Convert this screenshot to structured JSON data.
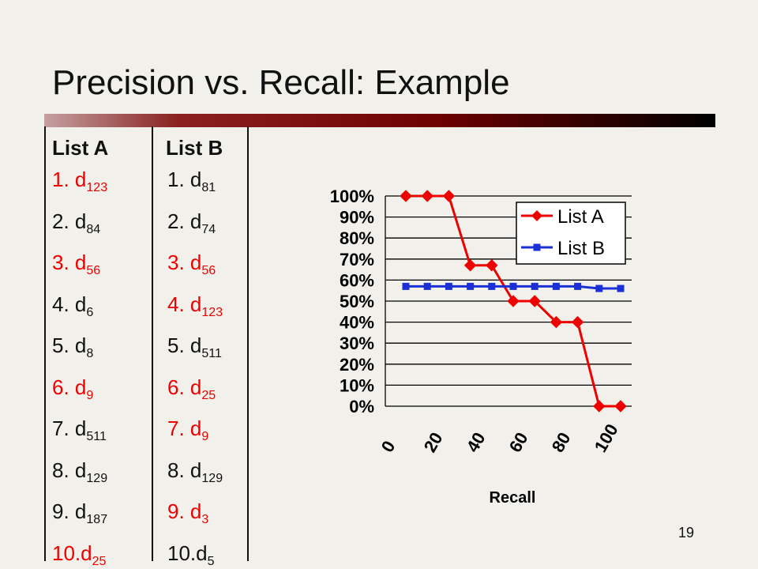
{
  "slide": {
    "title": "Precision vs. Recall: Example",
    "page_number": "19"
  },
  "lists": [
    {
      "header": "List A",
      "items": [
        {
          "num": "1.",
          "doc": "d",
          "sub": "123",
          "relevant": true
        },
        {
          "num": "2.",
          "doc": "d",
          "sub": "84",
          "relevant": false
        },
        {
          "num": "3.",
          "doc": "d",
          "sub": "56",
          "relevant": true
        },
        {
          "num": "4.",
          "doc": "d",
          "sub": "6",
          "relevant": false
        },
        {
          "num": "5.",
          "doc": "d",
          "sub": "8",
          "relevant": false
        },
        {
          "num": "6.",
          "doc": "d",
          "sub": "9",
          "relevant": true
        },
        {
          "num": "7.",
          "doc": "d",
          "sub": "511",
          "relevant": false
        },
        {
          "num": "8.",
          "doc": "d",
          "sub": "129",
          "relevant": false
        },
        {
          "num": "9.",
          "doc": "d",
          "sub": "187",
          "relevant": false
        },
        {
          "num": "10.",
          "doc": "d",
          "sub": "25",
          "relevant": true
        }
      ]
    },
    {
      "header": "List B",
      "items": [
        {
          "num": "1.",
          "doc": "d",
          "sub": "81",
          "relevant": false
        },
        {
          "num": "2.",
          "doc": "d",
          "sub": "74",
          "relevant": false
        },
        {
          "num": "3.",
          "doc": "d",
          "sub": "56",
          "relevant": true
        },
        {
          "num": "4.",
          "doc": "d",
          "sub": "123",
          "relevant": true
        },
        {
          "num": "5.",
          "doc": "d",
          "sub": "511",
          "relevant": false
        },
        {
          "num": "6.",
          "doc": "d",
          "sub": "25",
          "relevant": true
        },
        {
          "num": "7.",
          "doc": "d",
          "sub": "9",
          "relevant": true
        },
        {
          "num": "8.",
          "doc": "d",
          "sub": "129",
          "relevant": false
        },
        {
          "num": "9.",
          "doc": "d",
          "sub": "3",
          "relevant": true
        },
        {
          "num": "10.",
          "doc": "d",
          "sub": "5",
          "relevant": false
        }
      ]
    }
  ],
  "colors": {
    "relevant": "#ee0000",
    "normal": "#111111",
    "series_a": "#ee0000",
    "series_b": "#1a2fd6"
  },
  "chart_data": {
    "type": "line",
    "title": "",
    "xlabel": "Recall",
    "ylabel": "",
    "x_ticks": [
      "0",
      "20",
      "40",
      "60",
      "80",
      "100"
    ],
    "y_ticks": [
      "0%",
      "10%",
      "20%",
      "30%",
      "40%",
      "50%",
      "60%",
      "70%",
      "80%",
      "90%",
      "100%"
    ],
    "ylim": [
      0,
      100
    ],
    "legend_position": "top-right",
    "series": [
      {
        "name": "List A",
        "marker": "diamond",
        "color": "#ee0000",
        "values": [
          100,
          100,
          100,
          67,
          67,
          50,
          50,
          40,
          40,
          0,
          0
        ]
      },
      {
        "name": "List B",
        "marker": "square",
        "color": "#1a2fd6",
        "values": [
          57,
          57,
          57,
          57,
          57,
          57,
          57,
          57,
          57,
          56,
          56
        ]
      }
    ]
  }
}
